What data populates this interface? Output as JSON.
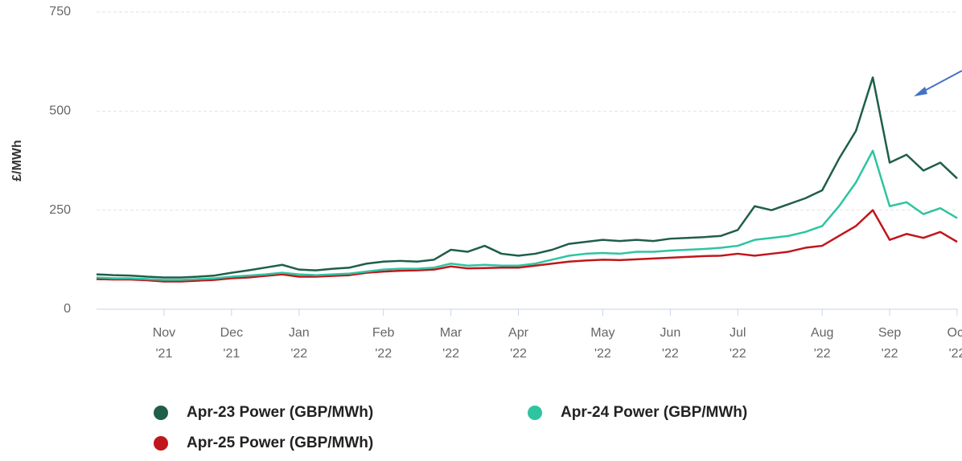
{
  "chart_data": {
    "type": "line",
    "y_label": "£/MWh",
    "categories": [
      null,
      null,
      null,
      null,
      [
        "Nov",
        "'21"
      ],
      null,
      null,
      null,
      [
        "Dec",
        "'21"
      ],
      null,
      null,
      null,
      [
        "Jan",
        "'22"
      ],
      null,
      null,
      null,
      null,
      [
        "Feb",
        "'22"
      ],
      null,
      null,
      null,
      [
        "Mar",
        "'22"
      ],
      null,
      null,
      null,
      [
        "Apr",
        "'22"
      ],
      null,
      null,
      null,
      null,
      [
        "May",
        "'22"
      ],
      null,
      null,
      null,
      [
        "Jun",
        "'22"
      ],
      null,
      null,
      null,
      [
        "Jul",
        "'22"
      ],
      null,
      null,
      null,
      null,
      [
        "Aug",
        "'22"
      ],
      null,
      null,
      null,
      [
        "Sep",
        "'22"
      ],
      null,
      null,
      null,
      [
        "Oct",
        "'22"
      ]
    ],
    "series": [
      {
        "name": "Apr-23 Power (GBP/MWh)",
        "color": "#1f5e4b",
        "values": [
          88,
          86,
          85,
          82,
          80,
          80,
          82,
          85,
          92,
          98,
          105,
          112,
          100,
          98,
          102,
          105,
          115,
          120,
          122,
          120,
          125,
          150,
          145,
          160,
          140,
          135,
          140,
          150,
          165,
          170,
          175,
          172,
          175,
          172,
          178,
          180,
          182,
          185,
          200,
          260,
          250,
          265,
          280,
          300,
          380,
          450,
          585,
          370,
          390,
          350,
          370,
          330
        ]
      },
      {
        "name": "Apr-24 Power (GBP/MWh)",
        "color": "#2ec4a0",
        "values": [
          80,
          78,
          78,
          76,
          74,
          74,
          76,
          78,
          82,
          85,
          88,
          92,
          88,
          86,
          88,
          90,
          95,
          100,
          102,
          102,
          105,
          115,
          110,
          112,
          110,
          110,
          115,
          125,
          135,
          140,
          142,
          140,
          145,
          145,
          148,
          150,
          152,
          155,
          160,
          175,
          180,
          185,
          195,
          210,
          260,
          320,
          400,
          260,
          270,
          240,
          255,
          230
        ]
      },
      {
        "name": "Apr-25 Power (GBP/MWh)",
        "color": "#c0161c",
        "values": [
          76,
          75,
          75,
          73,
          70,
          70,
          72,
          74,
          78,
          80,
          84,
          88,
          82,
          82,
          84,
          86,
          92,
          95,
          97,
          98,
          100,
          108,
          103,
          104,
          105,
          105,
          110,
          115,
          120,
          123,
          125,
          124,
          126,
          128,
          130,
          132,
          134,
          135,
          140,
          135,
          140,
          145,
          155,
          160,
          185,
          210,
          250,
          175,
          190,
          180,
          195,
          170
        ]
      }
    ],
    "ylim": [
      0,
      750
    ],
    "yticks": [
      0,
      250,
      500,
      750
    ],
    "grid": true
  }
}
